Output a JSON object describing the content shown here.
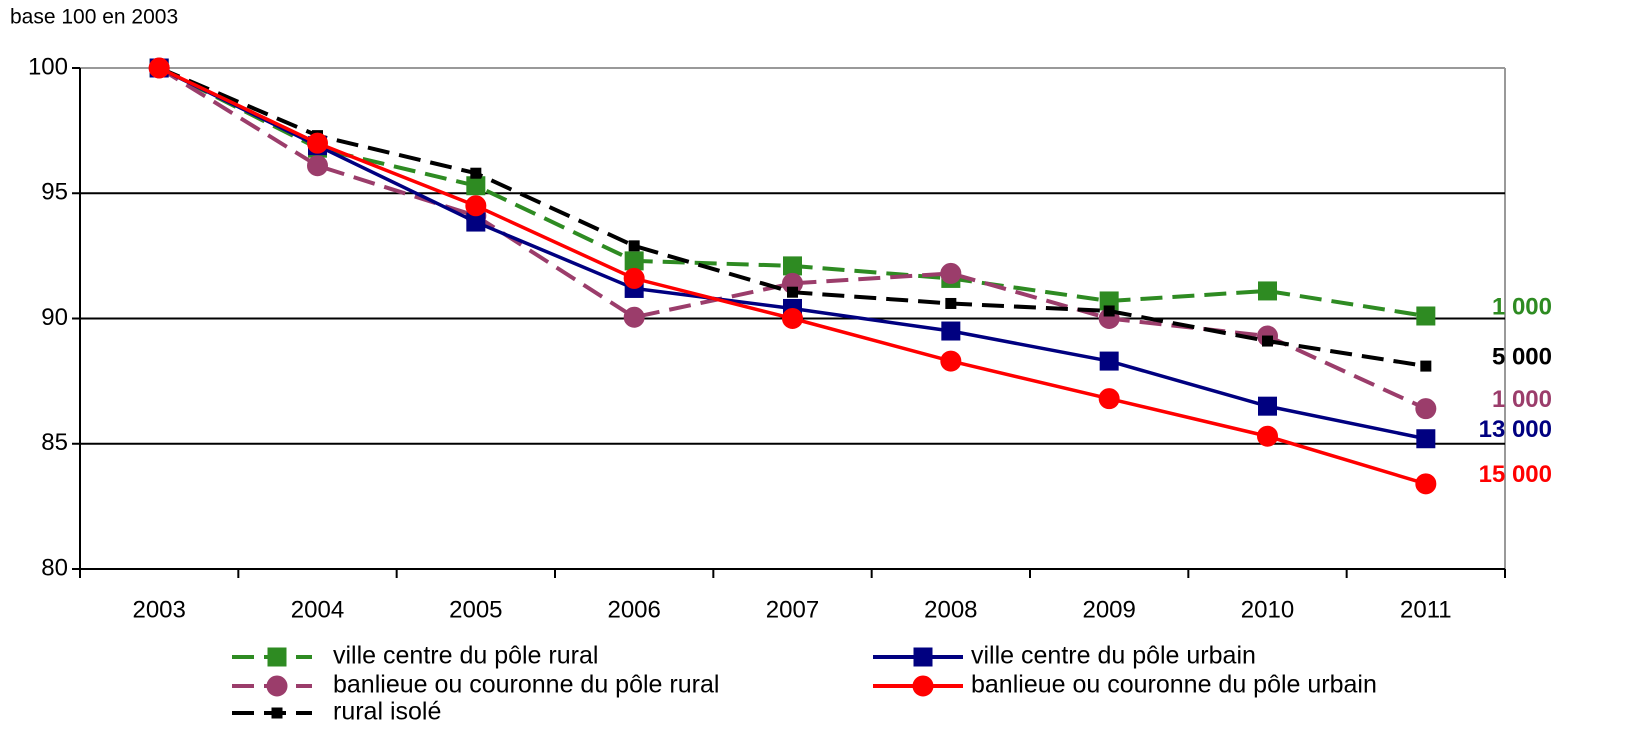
{
  "chart_data": {
    "type": "line",
    "y_label": "base 100 en 2003",
    "categories": [
      "2003",
      "2004",
      "2005",
      "2006",
      "2007",
      "2008",
      "2009",
      "2010",
      "2011"
    ],
    "ylim": [
      80,
      100
    ],
    "yticks": [
      80,
      85,
      90,
      95,
      100
    ],
    "grid": true,
    "series": [
      {
        "name": "ville centre du pôle rural",
        "color": "#2e8b22",
        "dash": true,
        "marker": "square",
        "values": [
          100,
          96.8,
          95.3,
          92.3,
          92.1,
          91.6,
          90.7,
          91.1,
          90.1
        ],
        "end_label": "1 000"
      },
      {
        "name": "ville centre du pôle urbain",
        "color": "#000080",
        "dash": false,
        "marker": "square",
        "values": [
          100,
          96.9,
          93.85,
          91.2,
          90.4,
          89.5,
          88.3,
          86.5,
          85.2
        ],
        "end_label": "13 000"
      },
      {
        "name": "banlieue ou couronne du pôle rural",
        "color": "#9b3d6b",
        "dash": true,
        "marker": "circle",
        "values": [
          100,
          96.1,
          94.1,
          90.05,
          91.4,
          91.8,
          90.0,
          89.3,
          86.4
        ],
        "end_label": "1 000"
      },
      {
        "name": "banlieue ou couronne du pôle urbain",
        "color": "#ff0000",
        "dash": false,
        "marker": "circle",
        "values": [
          100,
          97.0,
          94.5,
          91.6,
          90.0,
          88.3,
          86.8,
          85.3,
          83.4
        ],
        "end_label": "15 000"
      },
      {
        "name": "rural isolé",
        "color": "#000000",
        "dash": true,
        "marker": "small-square",
        "values": [
          100,
          97.3,
          95.8,
          92.9,
          91.05,
          90.6,
          90.3,
          89.1,
          88.1
        ],
        "end_label": "5 000"
      }
    ]
  }
}
